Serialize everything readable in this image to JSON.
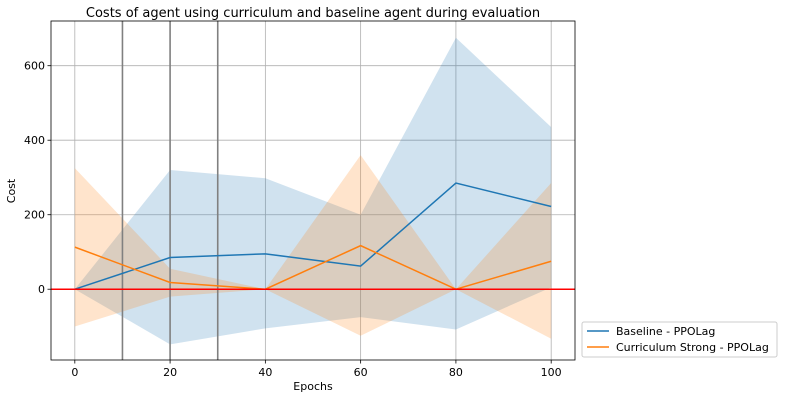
{
  "chart_data": {
    "type": "line",
    "title": "Costs of agent using curriculum and baseline agent during evaluation",
    "xlabel": "Epochs",
    "ylabel": "Cost",
    "xlim": [
      -5,
      105
    ],
    "ylim": [
      -190,
      720
    ],
    "x_ticks": [
      0,
      20,
      40,
      60,
      80,
      100
    ],
    "y_ticks": [
      0,
      200,
      400,
      600
    ],
    "grid": true,
    "legend_position": "lower-right-outside",
    "series": [
      {
        "name": "Baseline - PPOLag",
        "color": "#1f77b4",
        "x": [
          0,
          20,
          40,
          60,
          80,
          100
        ],
        "y": [
          0,
          85,
          95,
          62,
          285,
          222
        ],
        "lower": [
          0,
          -148,
          -105,
          -75,
          -108,
          5
        ],
        "upper": [
          0,
          320,
          298,
          200,
          675,
          435
        ]
      },
      {
        "name": "Curriculum Strong - PPOLag",
        "color": "#ff7f0e",
        "x": [
          0,
          20,
          40,
          60,
          80,
          100
        ],
        "y": [
          113,
          18,
          0,
          117,
          0,
          75
        ],
        "lower": [
          -100,
          -20,
          0,
          -125,
          0,
          -133
        ],
        "upper": [
          325,
          55,
          0,
          360,
          0,
          285
        ]
      }
    ],
    "vertical_lines": {
      "x": [
        10,
        20,
        30
      ],
      "color": "#808080"
    },
    "threshold_line": {
      "y": 0,
      "color": "#ff0000"
    }
  }
}
